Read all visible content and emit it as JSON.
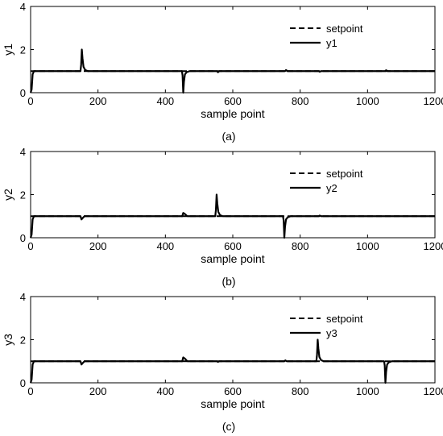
{
  "chart_data": [
    {
      "type": "line",
      "caption": "(a)",
      "xlabel": "sample point",
      "ylabel": "y1",
      "xlim": [
        0,
        1200
      ],
      "ylim": [
        0,
        4
      ],
      "x_ticks": [
        0,
        200,
        400,
        600,
        800,
        1000,
        1200
      ],
      "y_ticks": [
        0,
        2,
        4
      ],
      "grid": false,
      "legend_position": "top-right",
      "series": [
        {
          "name": "setpoint",
          "style": "dashed",
          "points": [
            [
              0,
              1
            ],
            [
              1200,
              1
            ]
          ]
        },
        {
          "name": "y1",
          "style": "solid",
          "points": [
            [
              0,
              0
            ],
            [
              3,
              0.15
            ],
            [
              6,
              0.85
            ],
            [
              10,
              1.0
            ],
            [
              148,
              1.0
            ],
            [
              150,
              1.3
            ],
            [
              152,
              2.0
            ],
            [
              154,
              1.6
            ],
            [
              157,
              1.2
            ],
            [
              162,
              1.05
            ],
            [
              170,
              1.0
            ],
            [
              449,
              1.0
            ],
            [
              451,
              0.8
            ],
            [
              453,
              0.0
            ],
            [
              455,
              0.5
            ],
            [
              458,
              0.85
            ],
            [
              463,
              0.95
            ],
            [
              472,
              1.0
            ],
            [
              553,
              1.0
            ],
            [
              556,
              0.95
            ],
            [
              560,
              1.0
            ],
            [
              755,
              1.0
            ],
            [
              758,
              1.05
            ],
            [
              762,
              1.0
            ],
            [
              855,
              1.0
            ],
            [
              858,
              0.97
            ],
            [
              862,
              1.0
            ],
            [
              1052,
              1.0
            ],
            [
              1055,
              1.04
            ],
            [
              1060,
              1.0
            ],
            [
              1200,
              1.0
            ]
          ]
        }
      ]
    },
    {
      "type": "line",
      "caption": "(b)",
      "xlabel": "sample point",
      "ylabel": "y2",
      "xlim": [
        0,
        1200
      ],
      "ylim": [
        0,
        4
      ],
      "x_ticks": [
        0,
        200,
        400,
        600,
        800,
        1000,
        1200
      ],
      "y_ticks": [
        0,
        2,
        4
      ],
      "grid": false,
      "legend_position": "top-right",
      "series": [
        {
          "name": "setpoint",
          "style": "dashed",
          "points": [
            [
              0,
              1
            ],
            [
              1200,
              1
            ]
          ]
        },
        {
          "name": "y2",
          "style": "solid",
          "points": [
            [
              0,
              0
            ],
            [
              3,
              0.15
            ],
            [
              6,
              0.85
            ],
            [
              10,
              1.0
            ],
            [
              148,
              1.0
            ],
            [
              151,
              0.85
            ],
            [
              155,
              0.92
            ],
            [
              160,
              1.0
            ],
            [
              450,
              1.0
            ],
            [
              453,
              1.15
            ],
            [
              458,
              1.1
            ],
            [
              465,
              1.0
            ],
            [
              548,
              1.0
            ],
            [
              550,
              1.3
            ],
            [
              552,
              2.0
            ],
            [
              554,
              1.6
            ],
            [
              557,
              1.2
            ],
            [
              562,
              1.05
            ],
            [
              570,
              1.0
            ],
            [
              749,
              1.0
            ],
            [
              751,
              0.8
            ],
            [
              753,
              0.0
            ],
            [
              755,
              0.5
            ],
            [
              758,
              0.85
            ],
            [
              763,
              0.95
            ],
            [
              772,
              1.0
            ],
            [
              855,
              1.0
            ],
            [
              858,
              1.03
            ],
            [
              862,
              1.0
            ],
            [
              1200,
              1.0
            ]
          ]
        }
      ]
    },
    {
      "type": "line",
      "caption": "(c)",
      "xlabel": "sample point",
      "ylabel": "y3",
      "xlim": [
        0,
        1200
      ],
      "ylim": [
        0,
        4
      ],
      "x_ticks": [
        0,
        200,
        400,
        600,
        800,
        1000,
        1200
      ],
      "y_ticks": [
        0,
        2,
        4
      ],
      "grid": false,
      "legend_position": "top-right",
      "series": [
        {
          "name": "setpoint",
          "style": "dashed",
          "points": [
            [
              0,
              1
            ],
            [
              1200,
              1
            ]
          ]
        },
        {
          "name": "y3",
          "style": "solid",
          "points": [
            [
              0,
              0
            ],
            [
              3,
              0.15
            ],
            [
              6,
              0.85
            ],
            [
              10,
              1.0
            ],
            [
              148,
              1.0
            ],
            [
              151,
              0.85
            ],
            [
              155,
              0.92
            ],
            [
              160,
              1.0
            ],
            [
              450,
              1.0
            ],
            [
              453,
              1.18
            ],
            [
              458,
              1.12
            ],
            [
              465,
              1.0
            ],
            [
              553,
              1.0
            ],
            [
              556,
              0.97
            ],
            [
              560,
              1.0
            ],
            [
              753,
              1.0
            ],
            [
              756,
              1.04
            ],
            [
              760,
              1.0
            ],
            [
              848,
              1.0
            ],
            [
              850,
              1.3
            ],
            [
              852,
              2.0
            ],
            [
              854,
              1.6
            ],
            [
              857,
              1.2
            ],
            [
              862,
              1.05
            ],
            [
              870,
              1.0
            ],
            [
              1049,
              1.0
            ],
            [
              1051,
              0.8
            ],
            [
              1053,
              0.0
            ],
            [
              1055,
              0.5
            ],
            [
              1058,
              0.85
            ],
            [
              1063,
              0.95
            ],
            [
              1072,
              1.0
            ],
            [
              1200,
              1.0
            ]
          ]
        }
      ]
    }
  ]
}
